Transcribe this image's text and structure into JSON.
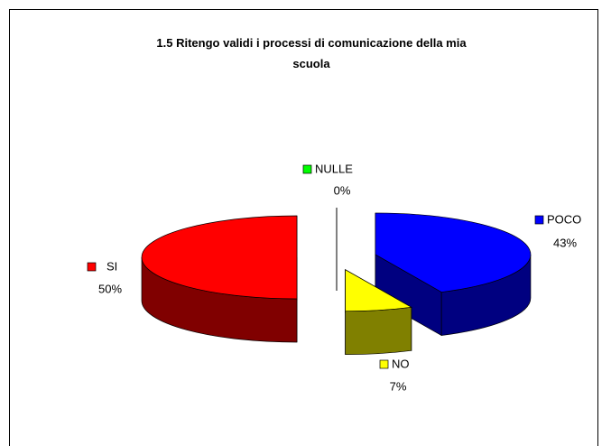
{
  "chart_data": {
    "type": "pie3d",
    "title": "1.5 Ritengo validi i processi di comunicazione della mia scuola",
    "categories": [
      "POCO",
      "NO",
      "NULLE",
      "SI"
    ],
    "values": [
      43,
      7,
      0,
      50
    ],
    "value_labels": [
      "43%",
      "7%",
      "0%",
      "50%"
    ],
    "colors": [
      "#0000ff",
      "#ffff00",
      "#00ff00",
      "#ff0000"
    ],
    "side_colors": [
      "#000080",
      "#808000",
      "#008000",
      "#800000"
    ]
  }
}
